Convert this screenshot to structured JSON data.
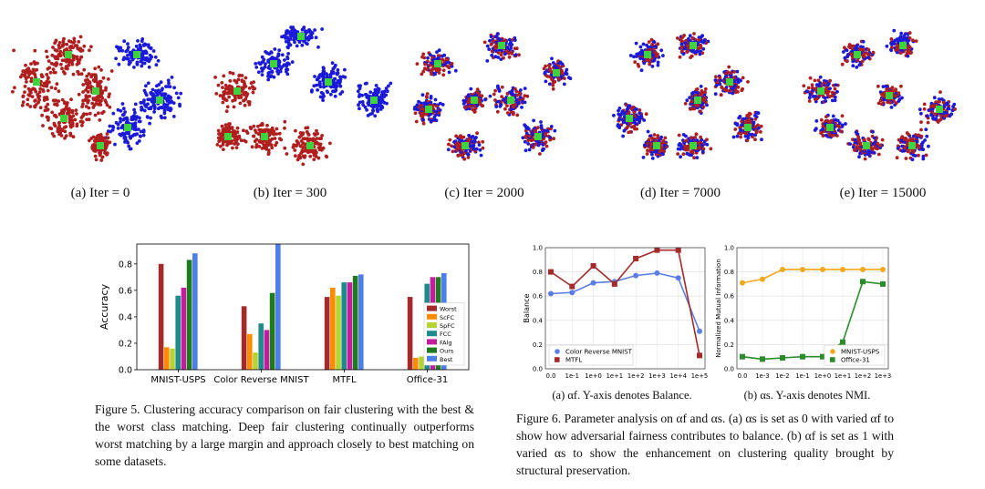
{
  "tsne": {
    "colors": {
      "class_a": "#b01f1f",
      "class_b": "#1a1ad8",
      "center": "#3fd23f"
    },
    "panels": [
      {
        "caption": "(a) Iter = 0"
      },
      {
        "caption": "(b) Iter = 300"
      },
      {
        "caption": "(c) Iter = 2000"
      },
      {
        "caption": "(d) Iter = 7000"
      },
      {
        "caption": "(e) Iter = 15000"
      }
    ]
  },
  "figure5": {
    "caption": "Figure 5. Clustering accuracy comparison on fair clustering with the best & the worst class matching. Deep fair clustering continually outperforms worst matching by a large margin and approach closely to best matching on some datasets."
  },
  "figure6": {
    "caption": "Figure 6. Parameter analysis on αf and αs. (a) αs is set as 0 with varied αf to show how adversarial fairness contributes to balance. (b) αf is set as 1 with varied αs to show the enhancement on clustering quality brought by structural preservation.",
    "sub_a": "(a) αf. Y-axis denotes Balance.",
    "sub_b": "(b) αs. Y-axis denotes NMI."
  },
  "chart_data": [
    {
      "type": "bar",
      "ylabel": "Accuracy",
      "ylim": [
        0,
        0.95
      ],
      "yticks": [
        "0.0",
        "0.2",
        "0.4",
        "0.6",
        "0.8"
      ],
      "categories": [
        "MNIST-USPS",
        "Color Reverse MNIST",
        "MTFL",
        "Office-31"
      ],
      "legend_position": "lower-right",
      "series": [
        {
          "name": "Worst",
          "color": "#a52a2a",
          "values": [
            0.8,
            0.48,
            0.55,
            0.55
          ]
        },
        {
          "name": "ScFC",
          "color": "#ff8c00",
          "values": [
            0.17,
            0.27,
            0.62,
            0.09
          ]
        },
        {
          "name": "SpFC",
          "color": "#b5d334",
          "values": [
            0.16,
            0.13,
            0.56,
            0.1
          ]
        },
        {
          "name": "FCC",
          "color": "#1e8c8c",
          "values": [
            0.56,
            0.35,
            0.66,
            0.65
          ]
        },
        {
          "name": "FAlg",
          "color": "#c21e9e",
          "values": [
            0.62,
            0.3,
            0.66,
            0.7
          ]
        },
        {
          "name": "Ours",
          "color": "#1f7a1f",
          "values": [
            0.83,
            0.58,
            0.71,
            0.7
          ]
        },
        {
          "name": "Best",
          "color": "#4e7ee8",
          "values": [
            0.88,
            0.95,
            0.72,
            0.73
          ]
        }
      ]
    },
    {
      "type": "line",
      "ylabel": "Balance",
      "ylim": [
        0,
        1.0
      ],
      "yticks": [
        "0.0",
        "0.2",
        "0.4",
        "0.6",
        "0.8",
        "1.0"
      ],
      "categories": [
        "0.0",
        "1e-1",
        "1e+0",
        "1e+1",
        "1e+2",
        "1e+3",
        "1e+4",
        "1e+5"
      ],
      "legend_position": "lower-left",
      "series": [
        {
          "name": "Color Reverse MNIST",
          "color": "#5b7ee5",
          "marker": "circle",
          "values": [
            0.62,
            0.63,
            0.71,
            0.72,
            0.77,
            0.79,
            0.75,
            0.31
          ]
        },
        {
          "name": "MTFL",
          "color": "#a52a2a",
          "marker": "square",
          "values": [
            0.8,
            0.68,
            0.85,
            0.7,
            0.91,
            0.98,
            0.98,
            0.11
          ]
        }
      ]
    },
    {
      "type": "line",
      "ylabel": "Normalized Mutual Information",
      "ylim": [
        0,
        1.0
      ],
      "yticks": [
        "0.0",
        "0.2",
        "0.4",
        "0.6",
        "0.8",
        "1.0"
      ],
      "categories": [
        "0.0",
        "1e-3",
        "1e-2",
        "1e-1",
        "1e+0",
        "1e+1",
        "1e+2",
        "1e+3"
      ],
      "legend_position": "lower-right",
      "series": [
        {
          "name": "MNIST-USPS",
          "color": "#f2a81d",
          "marker": "circle",
          "values": [
            0.71,
            0.74,
            0.82,
            0.82,
            0.82,
            0.82,
            0.82,
            0.82
          ]
        },
        {
          "name": "Office-31",
          "color": "#2a8c2a",
          "marker": "square",
          "values": [
            0.1,
            0.08,
            0.09,
            0.1,
            0.1,
            0.22,
            0.72,
            0.7
          ]
        }
      ]
    }
  ]
}
